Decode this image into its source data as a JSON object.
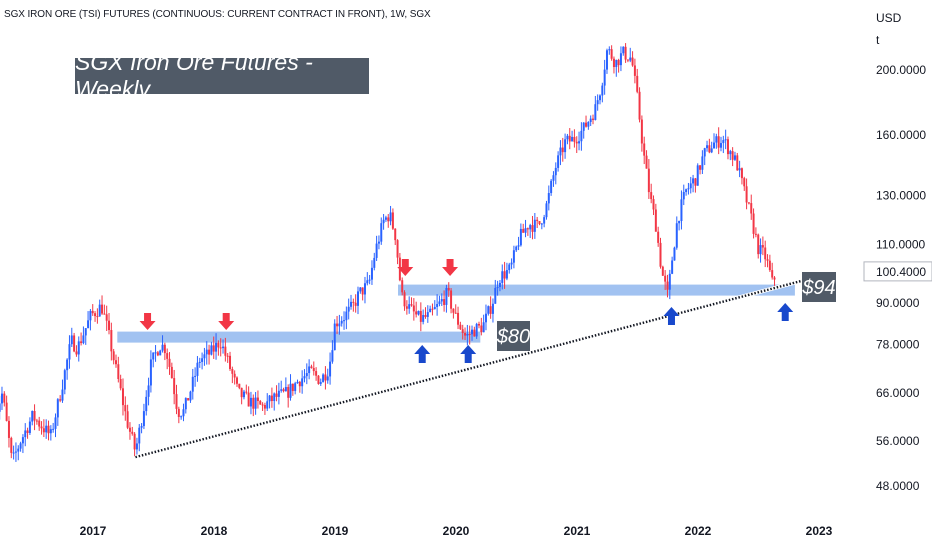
{
  "header": "SGX IRON ORE (TSI) FUTURES (CONTINUOUS: CURRENT CONTRACT IN FRONT), 1W, SGX",
  "title_box": "SGX Iron Ore Futures - Weekly",
  "chart_data": {
    "type": "candlestick",
    "title": "SGX Iron Ore Futures - Weekly",
    "y_axis": {
      "unit": "USD",
      "unit_sub": "t",
      "scale": "log",
      "range": [
        43,
        235
      ],
      "ticks": [
        {
          "value": 48,
          "label": "48.0000"
        },
        {
          "value": 56,
          "label": "56.0000"
        },
        {
          "value": 66,
          "label": "66.0000"
        },
        {
          "value": 78,
          "label": "78.0000"
        },
        {
          "value": 90,
          "label": "90.0000"
        },
        {
          "value": 110,
          "label": "110.0000"
        },
        {
          "value": 130,
          "label": "130.0000"
        },
        {
          "value": 160,
          "label": "160.0000"
        },
        {
          "value": 200,
          "label": "200.0000"
        }
      ],
      "last_price": {
        "value": 100.4,
        "label": "100.4000",
        "color": "#131722"
      }
    },
    "x_axis": {
      "range": [
        2016.25,
        2023.2
      ],
      "ticks": [
        {
          "value": 2017,
          "label": "2017"
        },
        {
          "value": 2018,
          "label": "2018"
        },
        {
          "value": 2019,
          "label": "2019"
        },
        {
          "value": 2020,
          "label": "2020"
        },
        {
          "value": 2021,
          "label": "2021"
        },
        {
          "value": 2022,
          "label": "2022"
        },
        {
          "value": 2023,
          "label": "2023"
        }
      ]
    },
    "price_path": [
      [
        2016.27,
        60
      ],
      [
        2016.35,
        66
      ],
      [
        2016.43,
        52
      ],
      [
        2016.5,
        56
      ],
      [
        2016.6,
        61
      ],
      [
        2016.75,
        57
      ],
      [
        2016.83,
        66
      ],
      [
        2016.92,
        79
      ],
      [
        2016.97,
        77
      ],
      [
        2017.08,
        86
      ],
      [
        2017.17,
        89
      ],
      [
        2017.22,
        82
      ],
      [
        2017.3,
        70
      ],
      [
        2017.38,
        60
      ],
      [
        2017.45,
        54
      ],
      [
        2017.52,
        63
      ],
      [
        2017.58,
        73
      ],
      [
        2017.65,
        78
      ],
      [
        2017.7,
        77
      ],
      [
        2017.75,
        70
      ],
      [
        2017.8,
        62
      ],
      [
        2017.85,
        62
      ],
      [
        2017.92,
        68
      ],
      [
        2017.98,
        74
      ],
      [
        2018.08,
        76
      ],
      [
        2018.15,
        79
      ],
      [
        2018.22,
        73
      ],
      [
        2018.3,
        66
      ],
      [
        2018.4,
        64
      ],
      [
        2018.5,
        63
      ],
      [
        2018.6,
        65
      ],
      [
        2018.7,
        66
      ],
      [
        2018.8,
        69
      ],
      [
        2018.9,
        71
      ],
      [
        2018.98,
        69
      ],
      [
        2019.05,
        72
      ],
      [
        2019.1,
        84
      ],
      [
        2019.18,
        86
      ],
      [
        2019.25,
        89
      ],
      [
        2019.3,
        93
      ],
      [
        2019.38,
        96
      ],
      [
        2019.43,
        107
      ],
      [
        2019.5,
        119
      ],
      [
        2019.55,
        122
      ],
      [
        2019.6,
        113
      ],
      [
        2019.65,
        92
      ],
      [
        2019.72,
        88
      ],
      [
        2019.8,
        85
      ],
      [
        2019.88,
        86
      ],
      [
        2019.95,
        89
      ],
      [
        2020.03,
        93
      ],
      [
        2020.08,
        87
      ],
      [
        2020.12,
        84
      ],
      [
        2020.18,
        80
      ],
      [
        2020.25,
        82
      ],
      [
        2020.32,
        83
      ],
      [
        2020.4,
        90
      ],
      [
        2020.45,
        98
      ],
      [
        2020.55,
        101
      ],
      [
        2020.62,
        112
      ],
      [
        2020.7,
        118
      ],
      [
        2020.78,
        117
      ],
      [
        2020.85,
        126
      ],
      [
        2020.92,
        143
      ],
      [
        2021.0,
        156
      ],
      [
        2021.08,
        158
      ],
      [
        2021.15,
        163
      ],
      [
        2021.25,
        175
      ],
      [
        2021.3,
        190
      ],
      [
        2021.35,
        215
      ],
      [
        2021.42,
        205
      ],
      [
        2021.48,
        212
      ],
      [
        2021.55,
        208
      ],
      [
        2021.6,
        180
      ],
      [
        2021.65,
        150
      ],
      [
        2021.7,
        130
      ],
      [
        2021.75,
        118
      ],
      [
        2021.8,
        100
      ],
      [
        2021.85,
        92
      ],
      [
        2021.88,
        103
      ],
      [
        2021.93,
        120
      ],
      [
        2022.0,
        132
      ],
      [
        2022.08,
        138
      ],
      [
        2022.15,
        150
      ],
      [
        2022.22,
        155
      ],
      [
        2022.3,
        158
      ],
      [
        2022.35,
        153
      ],
      [
        2022.42,
        145
      ],
      [
        2022.5,
        128
      ],
      [
        2022.55,
        118
      ],
      [
        2022.6,
        108
      ],
      [
        2022.65,
        106
      ],
      [
        2022.68,
        102
      ],
      [
        2022.72,
        95
      ],
      [
        2022.74,
        100.4
      ]
    ],
    "zones": [
      {
        "label": "$80",
        "value": 80,
        "x_range": [
          2017.3,
          2020.3
        ],
        "color": "#9cbff0"
      },
      {
        "label": "$94",
        "value": 94,
        "x_range": [
          2019.62,
          2022.9
        ],
        "color": "#9cbff0"
      }
    ],
    "trendline": {
      "points": [
        [
          2017.45,
          53
        ],
        [
          2023.0,
          97.5
        ]
      ],
      "style": "dotted",
      "color": "#131722"
    },
    "red_arrows": {
      "direction": "down",
      "color": "#f23645",
      "x": [
        2017.55,
        2018.2,
        2019.68,
        2020.05
      ]
    },
    "blue_arrows": {
      "direction": "up",
      "color": "#1848cc",
      "x": [
        2019.82,
        2020.2,
        2021.88,
        2022.82
      ]
    },
    "colors": {
      "up": "#2962ff",
      "down": "#f23645",
      "zone": "#9cbff0",
      "label_bg": "#505a67",
      "axis_text": "#131722"
    }
  }
}
